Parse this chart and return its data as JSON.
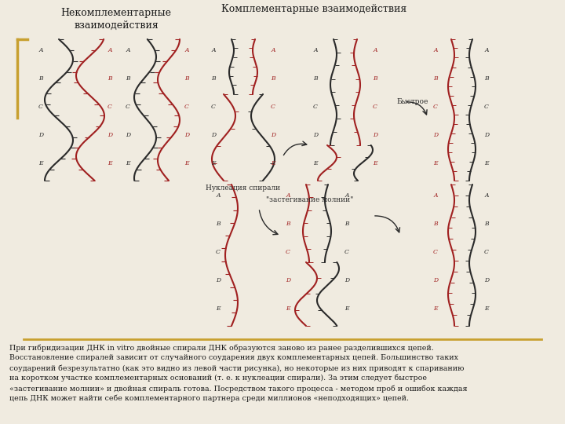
{
  "bg_color": "#f0ebe0",
  "title_left": "Некомплементарные\nвзаимодействия",
  "title_right": "Комплементарные взаимодействия",
  "label_nucleation": "Нуклеация спирали",
  "label_zipper": "\"застегивание молнии\"",
  "label_fast": "Быстрое",
  "body_text_line1": "При гибридизации ДНК in vitro двойные спирали ДНК образуются заново из ранее разделившихся цепей.",
  "body_text_line2": "Восстановление спиралей зависит от случайного соударения двух комплементарных цепей. Большинство таких",
  "body_text_line3": "соударений безрезультатно (как это видно из левой части рисунка), но некоторые из них приводят к спариванию",
  "body_text_line4": "на коротком участке комплементарных оснований (т. е. к нуклеации спирали). За этим следует быстрое",
  "body_text_line5": "«застегивание молнии» и двойная спираль готова. Посредством такого процесса - методом проб и ошибок каждая",
  "body_text_line6": "цепь ДНК может найти себе комплементарного партнера среди миллионов «неподходящих» цепей.",
  "separator_color": "#c8a030",
  "text_color": "#1a1a1a",
  "label_color": "#1a1a1a",
  "black_strand": "#2a2a2a",
  "red_strand": "#a02020",
  "base_dark": "#333333",
  "left_bracket_color": "#c8a030"
}
